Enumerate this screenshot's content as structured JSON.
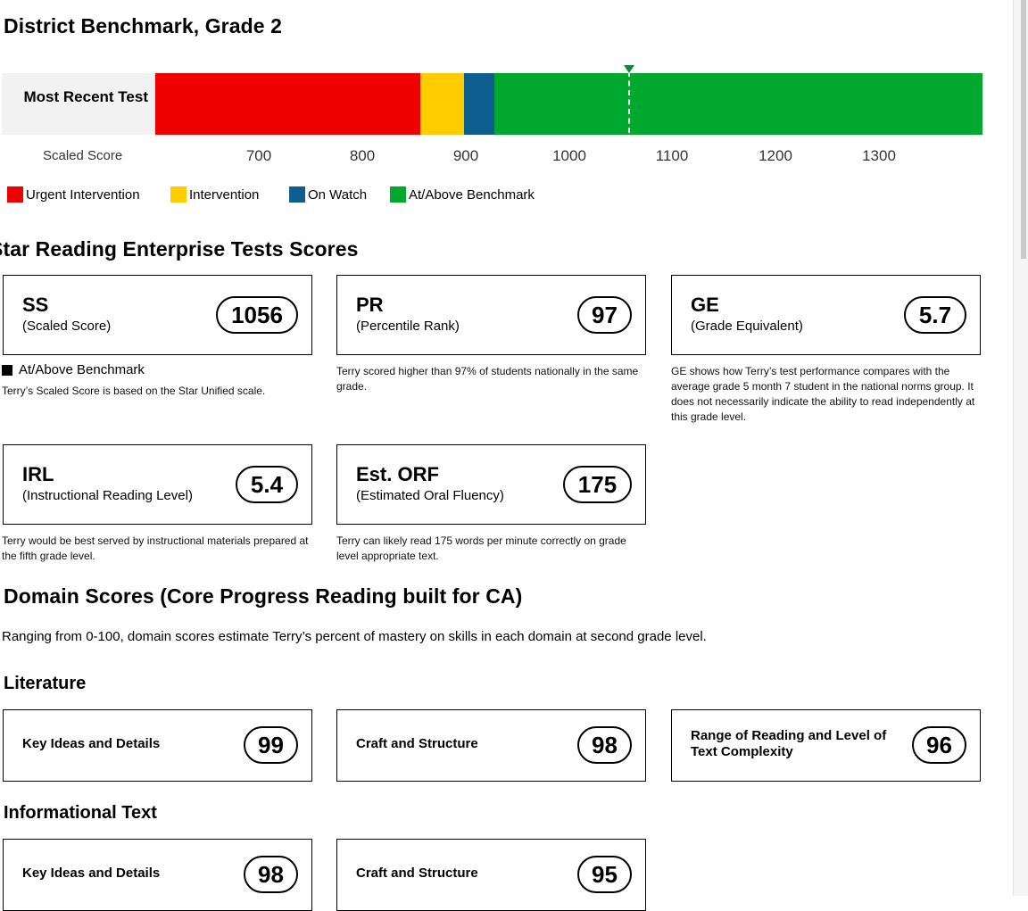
{
  "benchmark": {
    "title": "District Benchmark, Grade 2",
    "row_label": "Most Recent Test",
    "axis_title": "Scaled Score",
    "scale": {
      "min": 600,
      "max": 1396
    },
    "ticks": [
      "700",
      "800",
      "900",
      "1000",
      "1100",
      "1200",
      "1300"
    ],
    "tick_values": [
      700,
      800,
      900,
      1000,
      1100,
      1200,
      1300
    ],
    "segments": [
      {
        "name": "Urgent Intervention",
        "from": 600,
        "to": 855,
        "color": "#ee0000"
      },
      {
        "name": "Intervention",
        "from": 855,
        "to": 897,
        "color": "#ffcc00"
      },
      {
        "name": "On Watch",
        "from": 897,
        "to": 926,
        "color": "#0e5f8f"
      },
      {
        "name": "At/Above Benchmark",
        "from": 926,
        "to": 1396,
        "color": "#00a82d"
      }
    ],
    "marker_value": 1056,
    "legend": [
      "Urgent Intervention",
      "Intervention",
      "On Watch",
      "At/Above Benchmark"
    ]
  },
  "star": {
    "title": "Star Reading Enterprise Tests Scores",
    "ss": {
      "abbr": "SS",
      "full": "(Scaled Score)",
      "value": "1056"
    },
    "ss_status": "At/Above Benchmark",
    "ss_desc": "Terry’s Scaled Score is based on the Star Unified scale.",
    "pr": {
      "abbr": "PR",
      "full": "(Percentile Rank)",
      "value": "97",
      "desc": "Terry scored higher than 97% of students nationally in the same grade."
    },
    "ge": {
      "abbr": "GE",
      "full": "(Grade Equivalent)",
      "value": "5.7",
      "desc": "GE shows how Terry’s test performance compares with the average grade 5 month 7 student in the national norms group. It does not necessarily indicate the ability to read independently at this grade level."
    },
    "irl": {
      "abbr": "IRL",
      "full": "(Instructional Reading Level)",
      "value": "5.4",
      "desc": "Terry would be best served by instructional materials prepared at the fifth grade level."
    },
    "orf": {
      "abbr": "Est. ORF",
      "full": "(Estimated Oral Fluency)",
      "value": "175",
      "desc": "Terry can likely read 175 words per minute correctly on grade level appropriate text."
    }
  },
  "domain": {
    "title": "Domain Scores (Core Progress Reading built for CA)",
    "intro": "Ranging from 0-100, domain scores estimate Terry’s percent of mastery on skills in each domain at second grade level.",
    "literature": {
      "title": "Literature",
      "items": [
        {
          "label": "Key Ideas and Details",
          "value": "99"
        },
        {
          "label": "Craft and Structure",
          "value": "98"
        },
        {
          "label": "Range of Reading and Level of Text Complexity",
          "value": "96"
        }
      ]
    },
    "informational": {
      "title": "Informational Text",
      "items": [
        {
          "label": "Key Ideas and Details",
          "value": "98"
        },
        {
          "label": "Craft and Structure",
          "value": "95"
        }
      ]
    }
  }
}
